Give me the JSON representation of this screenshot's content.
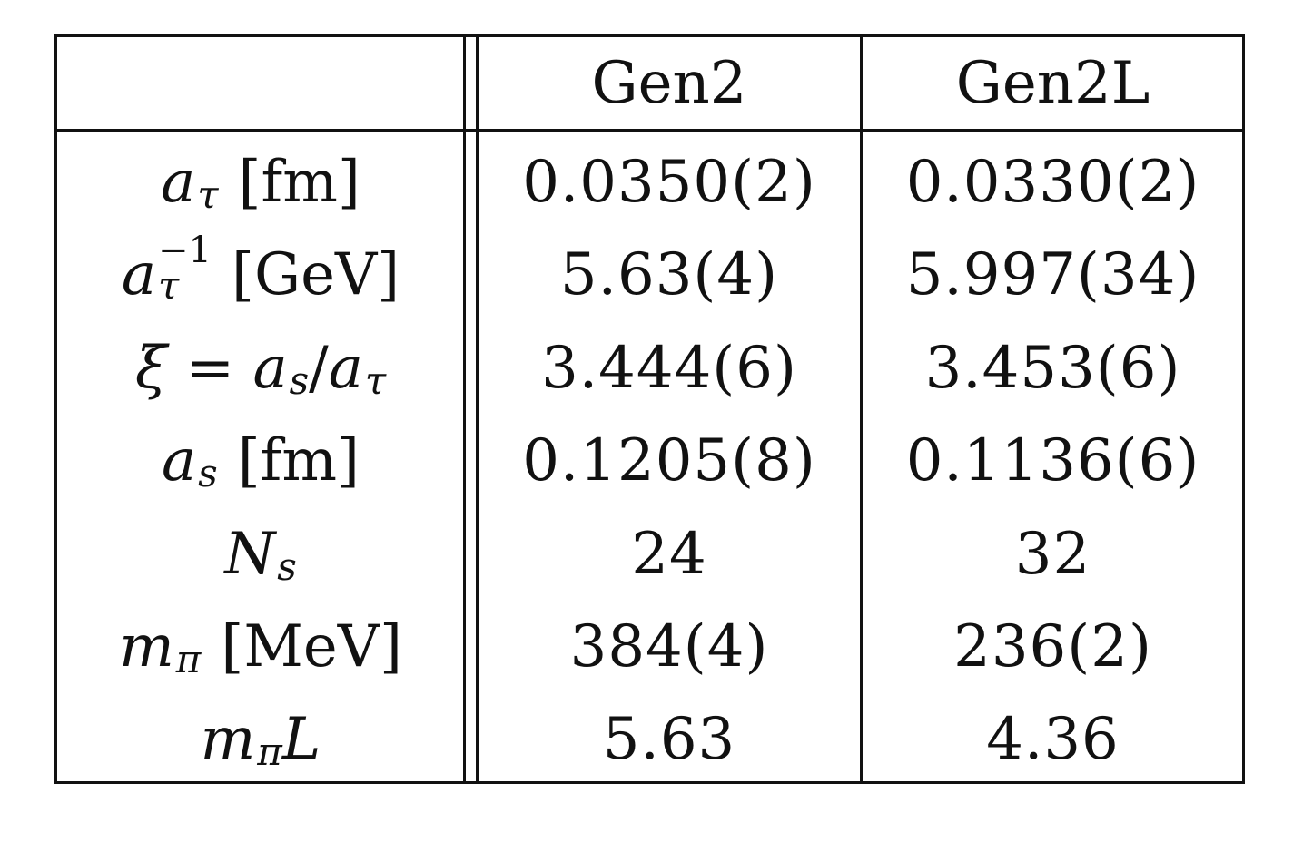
{
  "table": {
    "headers": [
      "",
      "Gen2",
      "Gen2L"
    ],
    "rows": [
      {
        "label": "a_τ [fm]",
        "gen2": "0.0350(2)",
        "gen2l": "0.0330(2)"
      },
      {
        "label": "a_τ^−1 [GeV]",
        "gen2": "5.63(4)",
        "gen2l": "5.997(34)"
      },
      {
        "label": "ξ = a_s/a_τ",
        "gen2": "3.444(6)",
        "gen2l": "3.453(6)"
      },
      {
        "label": "a_s [fm]",
        "gen2": "0.1205(8)",
        "gen2l": "0.1136(6)"
      },
      {
        "label": "N_s",
        "gen2": "24",
        "gen2l": "32"
      },
      {
        "label": "m_π [MeV]",
        "gen2": "384(4)",
        "gen2l": "236(2)"
      },
      {
        "label": "m_π L",
        "gen2": "5.63",
        "gen2l": "4.36"
      }
    ]
  },
  "math_parts": {
    "a": "a",
    "tau": "τ",
    "s": "s",
    "xi": "ξ",
    "eq": " = ",
    "slash": "/",
    "N": "N",
    "m": "m",
    "pi": "π",
    "L": "L",
    "minus_one": "−1",
    "fm": "[fm]",
    "gev": "[GeV]",
    "mev": "[MeV]"
  }
}
